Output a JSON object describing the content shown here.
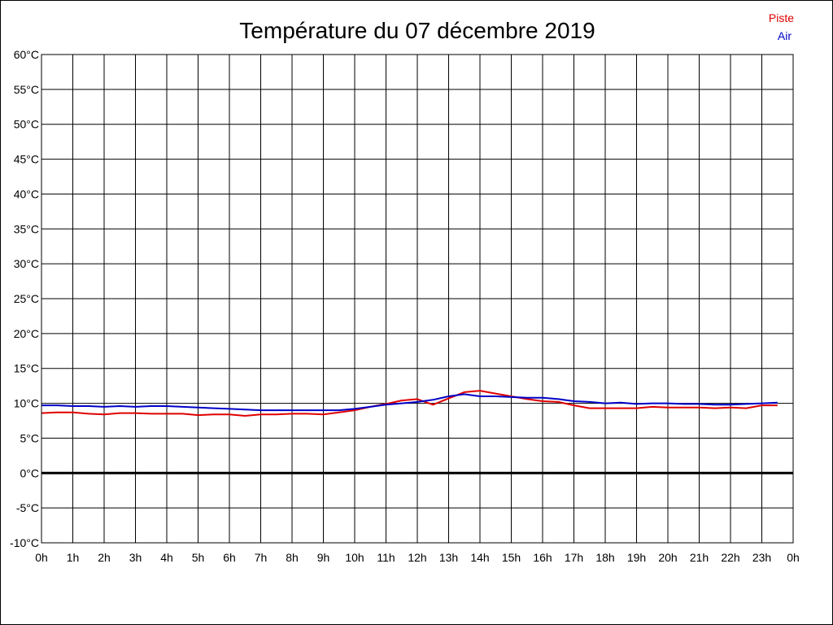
{
  "chart_data": {
    "type": "line",
    "title": "Température du 07 décembre 2019",
    "xlabel": "",
    "ylabel": "",
    "x_ticks": [
      "0h",
      "1h",
      "2h",
      "3h",
      "4h",
      "5h",
      "6h",
      "7h",
      "8h",
      "9h",
      "10h",
      "11h",
      "12h",
      "13h",
      "14h",
      "15h",
      "16h",
      "17h",
      "18h",
      "19h",
      "20h",
      "21h",
      "22h",
      "23h",
      "0h"
    ],
    "xlim": [
      0,
      24
    ],
    "y_ticks": [
      "-10°C",
      "-5°C",
      "0°C",
      "5°C",
      "10°C",
      "15°C",
      "20°C",
      "25°C",
      "30°C",
      "35°C",
      "40°C",
      "45°C",
      "50°C",
      "55°C",
      "60°C"
    ],
    "ylim": [
      -10,
      60
    ],
    "y_tick_values": [
      -10,
      -5,
      0,
      5,
      10,
      15,
      20,
      25,
      30,
      35,
      40,
      45,
      50,
      55,
      60
    ],
    "grid": true,
    "zero_line": true,
    "legend_position": "top-right",
    "series": [
      {
        "name": "Piste",
        "color": "#e00000",
        "x": [
          0,
          0.5,
          1,
          1.5,
          2,
          2.5,
          3,
          3.5,
          4,
          4.5,
          5,
          5.5,
          6,
          6.5,
          7,
          7.5,
          8,
          8.5,
          9,
          9.5,
          10,
          10.5,
          11,
          11.5,
          12,
          12.5,
          13,
          13.5,
          14,
          14.5,
          15,
          15.5,
          16,
          16.5,
          17,
          17.5,
          18,
          18.5,
          19,
          19.5,
          20,
          20.5,
          21,
          21.5,
          22,
          22.5,
          23,
          23.5
        ],
        "y": [
          8.6,
          8.7,
          8.7,
          8.5,
          8.4,
          8.6,
          8.6,
          8.5,
          8.5,
          8.5,
          8.3,
          8.4,
          8.4,
          8.2,
          8.4,
          8.4,
          8.5,
          8.5,
          8.4,
          8.7,
          9.0,
          9.5,
          9.9,
          10.4,
          10.6,
          9.8,
          10.7,
          11.6,
          11.8,
          11.4,
          11.0,
          10.6,
          10.3,
          10.2,
          9.7,
          9.3,
          9.3,
          9.3,
          9.3,
          9.5,
          9.4,
          9.4,
          9.4,
          9.3,
          9.4,
          9.3,
          9.7,
          9.7
        ]
      },
      {
        "name": "Air",
        "color": "#0000c8",
        "x": [
          0,
          0.5,
          1,
          1.5,
          2,
          2.5,
          3,
          3.5,
          4,
          4.5,
          5,
          5.5,
          6,
          6.5,
          7,
          7.5,
          8,
          8.5,
          9,
          9.5,
          10,
          10.5,
          11,
          11.5,
          12,
          12.5,
          13,
          13.5,
          14,
          14.5,
          15,
          15.5,
          16,
          16.5,
          17,
          17.5,
          18,
          18.5,
          19,
          19.5,
          20,
          20.5,
          21,
          21.5,
          22,
          22.5,
          23,
          23.5
        ],
        "y": [
          9.7,
          9.7,
          9.6,
          9.6,
          9.5,
          9.6,
          9.5,
          9.6,
          9.6,
          9.5,
          9.4,
          9.3,
          9.2,
          9.1,
          9.0,
          9.0,
          9.0,
          9.0,
          9.0,
          9.0,
          9.2,
          9.5,
          9.8,
          10.0,
          10.2,
          10.5,
          11.0,
          11.3,
          11.0,
          11.0,
          10.9,
          10.8,
          10.8,
          10.6,
          10.3,
          10.2,
          10.0,
          10.1,
          9.9,
          10.0,
          10.0,
          9.9,
          9.9,
          9.8,
          9.8,
          9.9,
          10.0,
          10.1
        ]
      }
    ]
  }
}
